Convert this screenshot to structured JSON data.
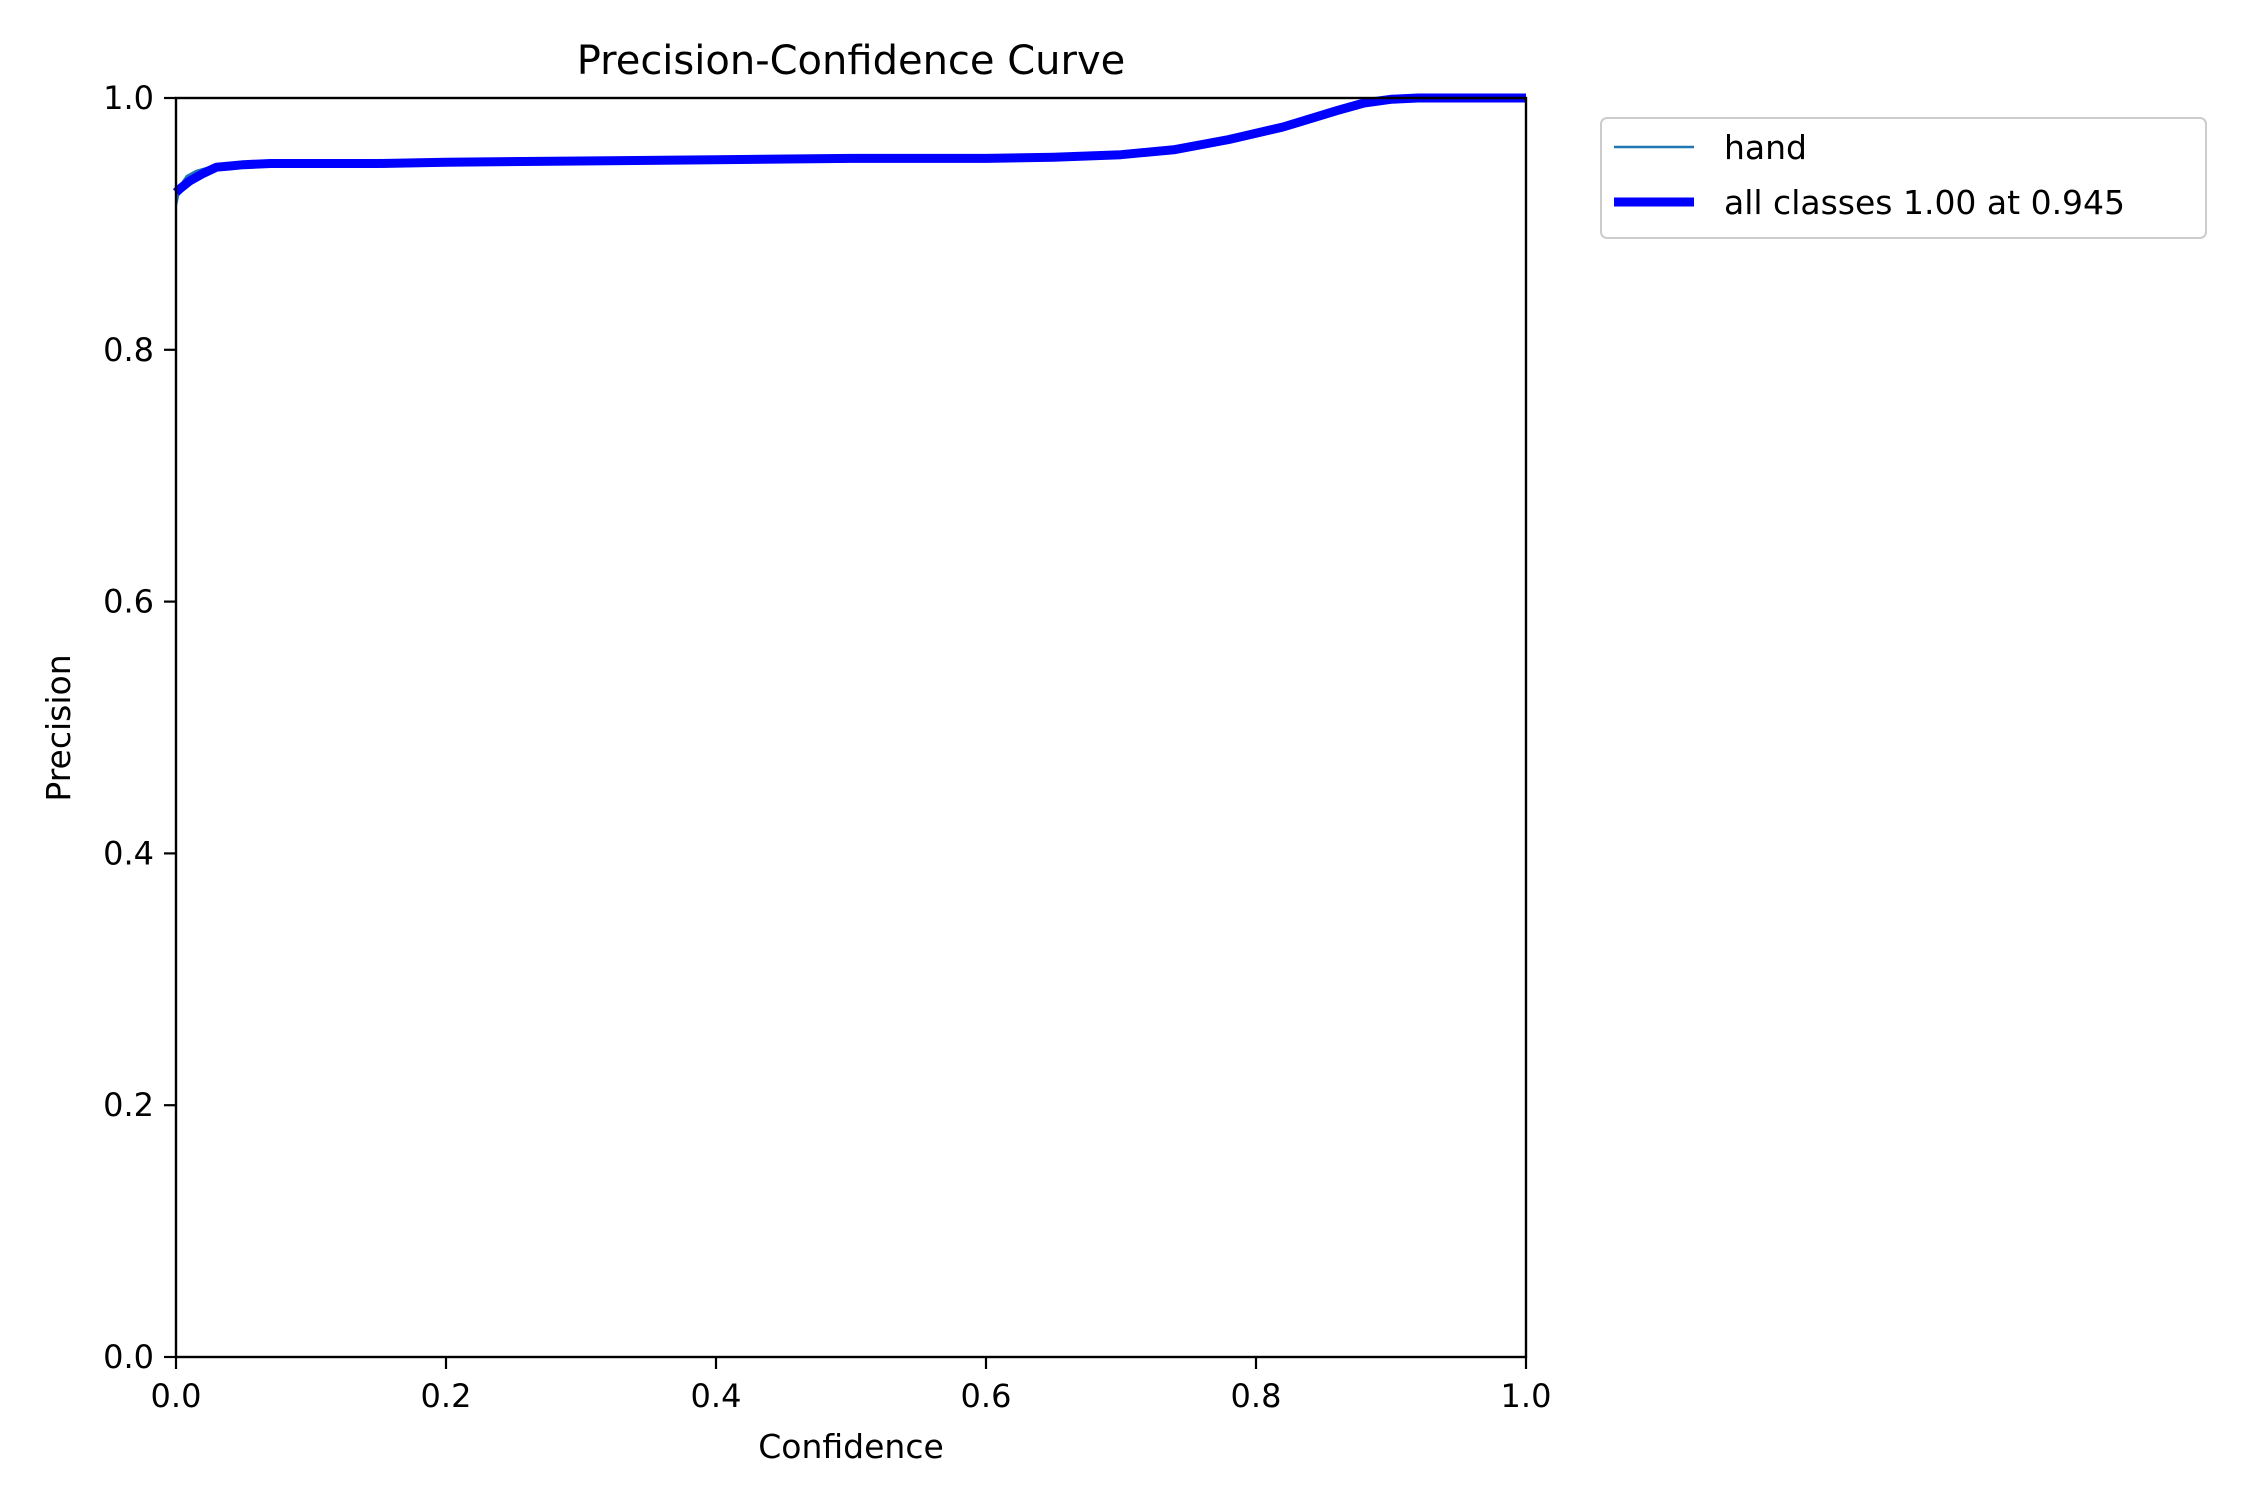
{
  "chart_data": {
    "type": "line",
    "title": "Precision-Confidence Curve",
    "xlabel": "Confidence",
    "ylabel": "Precision",
    "xlim": [
      0.0,
      1.0
    ],
    "ylim": [
      0.0,
      1.0
    ],
    "xticks": [
      "0.0",
      "0.2",
      "0.4",
      "0.6",
      "0.8",
      "1.0"
    ],
    "yticks": [
      "0.0",
      "0.2",
      "0.4",
      "0.6",
      "0.8",
      "1.0"
    ],
    "grid": false,
    "legend_placement": "outside top-right",
    "series": [
      {
        "name": "hand",
        "color": "#1f77b4",
        "style": "thin",
        "x": [
          0.0,
          0.003,
          0.008,
          0.015,
          0.025,
          0.035,
          0.05,
          0.07,
          0.1,
          0.15,
          0.2,
          0.3,
          0.4,
          0.5,
          0.6,
          0.65,
          0.7,
          0.74,
          0.78,
          0.82,
          0.86,
          0.88,
          0.9,
          0.92,
          0.95,
          1.0
        ],
        "y": [
          0.915,
          0.93,
          0.938,
          0.942,
          0.945,
          0.946,
          0.947,
          0.948,
          0.948,
          0.948,
          0.949,
          0.95,
          0.951,
          0.952,
          0.952,
          0.953,
          0.955,
          0.959,
          0.967,
          0.977,
          0.99,
          0.996,
          0.999,
          1.0,
          1.0,
          1.0
        ]
      },
      {
        "name": "all classes 1.00 at 0.945",
        "color": "#0000ff",
        "style": "thick",
        "x": [
          0.0,
          0.003,
          0.01,
          0.02,
          0.03,
          0.04,
          0.05,
          0.07,
          0.1,
          0.15,
          0.2,
          0.3,
          0.4,
          0.5,
          0.6,
          0.65,
          0.7,
          0.74,
          0.78,
          0.82,
          0.86,
          0.88,
          0.9,
          0.92,
          0.95,
          1.0
        ],
        "y": [
          0.925,
          0.928,
          0.934,
          0.94,
          0.945,
          0.946,
          0.947,
          0.948,
          0.948,
          0.948,
          0.949,
          0.95,
          0.951,
          0.952,
          0.952,
          0.953,
          0.955,
          0.959,
          0.967,
          0.977,
          0.99,
          0.996,
          0.999,
          1.0,
          1.0,
          1.0
        ]
      }
    ]
  }
}
